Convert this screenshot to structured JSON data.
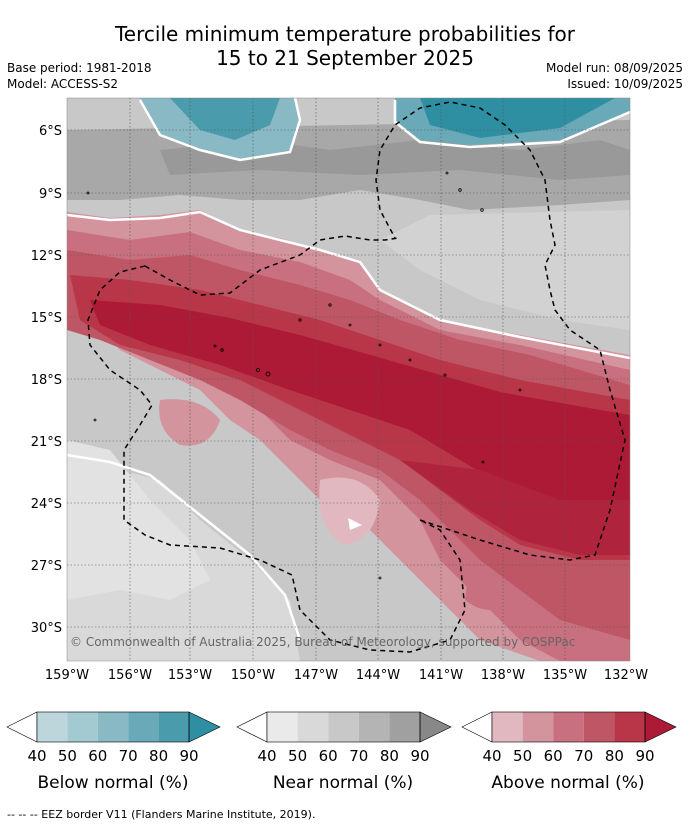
{
  "header": {
    "title_line1": "Tercile minimum temperature probabilities for",
    "title_line2": "15 to 21 September 2025",
    "base_period": "Base period: 1981-2018",
    "model": "Model: ACCESS-S2",
    "model_run": "Model run: 08/09/2025",
    "issued": "Issued: 10/09/2025"
  },
  "map": {
    "lat_labels": [
      "6°S",
      "9°S",
      "12°S",
      "15°S",
      "18°S",
      "21°S",
      "24°S",
      "27°S",
      "30°S"
    ],
    "lon_labels": [
      "159°W",
      "156°W",
      "153°W",
      "150°W",
      "147°W",
      "144°W",
      "141°W",
      "138°W",
      "135°W",
      "132°W"
    ],
    "copyright": "© Commonwealth of Australia 2025, Bureau of Meteorology, supported by COSPPac",
    "colors": {
      "above": [
        "#e2b8c0",
        "#d3949e",
        "#c8707f",
        "#bf5665",
        "#b83648",
        "#ad1a35"
      ],
      "near": [
        "#eaeaea",
        "#d9d9d9",
        "#c8c8c8",
        "#b4b4b4",
        "#a0a0a0",
        "#888888"
      ],
      "below": [
        "#bcd6dc",
        "#a3c9d1",
        "#88b9c4",
        "#6aaab8",
        "#4a9bab",
        "#2e8fa3"
      ]
    }
  },
  "legend": {
    "ticks": [
      "40",
      "50",
      "60",
      "70",
      "80",
      "90"
    ],
    "below_caption": "Below normal (%)",
    "near_caption": "Near normal (%)",
    "above_caption": "Above normal (%)"
  },
  "footer": {
    "eez_note": "-- -- -- EEZ border V11 (Flanders Marine Institute, 2019)."
  }
}
